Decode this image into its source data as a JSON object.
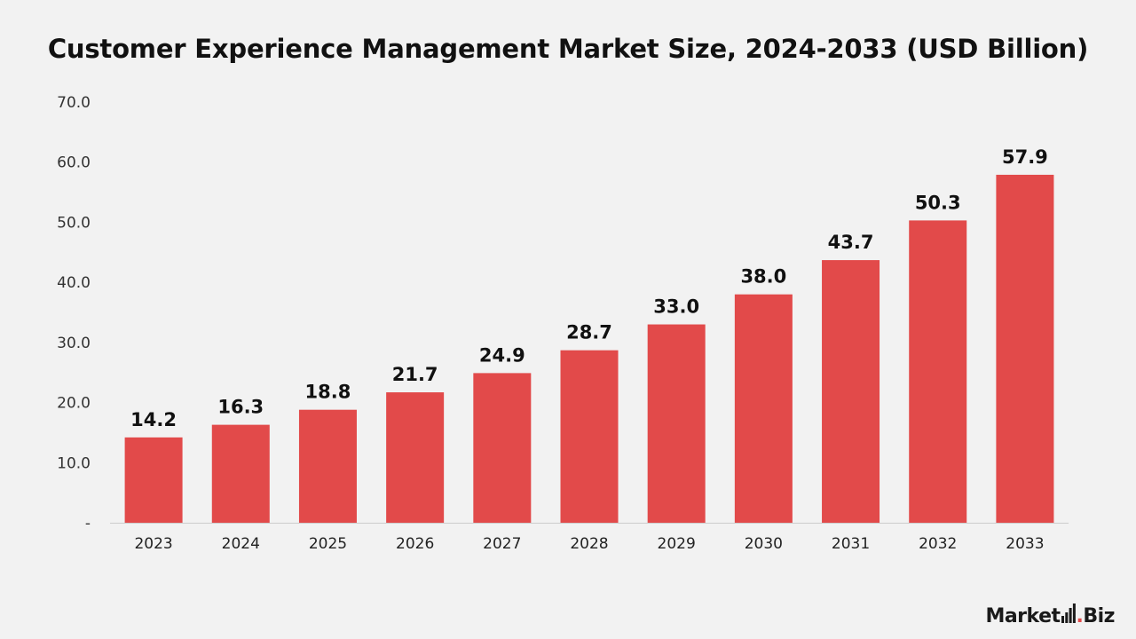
{
  "logo": {
    "text_main": "Market",
    "text_dot": ".",
    "text_suffix": "Biz",
    "icon": "signal-bars-icon"
  },
  "chart_data": {
    "type": "bar",
    "title": "Customer Experience Management Market Size, 2024-2033 (USD Billion)",
    "categories": [
      "2023",
      "2024",
      "2025",
      "2026",
      "2027",
      "2028",
      "2029",
      "2030",
      "2031",
      "2032",
      "2033"
    ],
    "values": [
      14.2,
      16.3,
      18.8,
      21.7,
      24.9,
      28.7,
      33.0,
      38.0,
      43.7,
      50.3,
      57.9
    ],
    "data_labels": [
      "14.2",
      "16.3",
      "18.8",
      "21.7",
      "24.9",
      "28.7",
      "33.0",
      "38.0",
      "43.7",
      "50.3",
      "57.9"
    ],
    "y_tick_values": [
      0,
      10,
      20,
      30,
      40,
      50,
      60,
      70
    ],
    "y_tick_labels": [
      "-",
      "10.0",
      "20.0",
      "30.0",
      "40.0",
      "50.0",
      "60.0",
      "70.0"
    ],
    "ylim": [
      0,
      70
    ],
    "xlabel": "",
    "ylabel": "",
    "grid": false,
    "legend": "none",
    "bar_color": "#e24a4a",
    "axis_color": "#cccccc"
  }
}
